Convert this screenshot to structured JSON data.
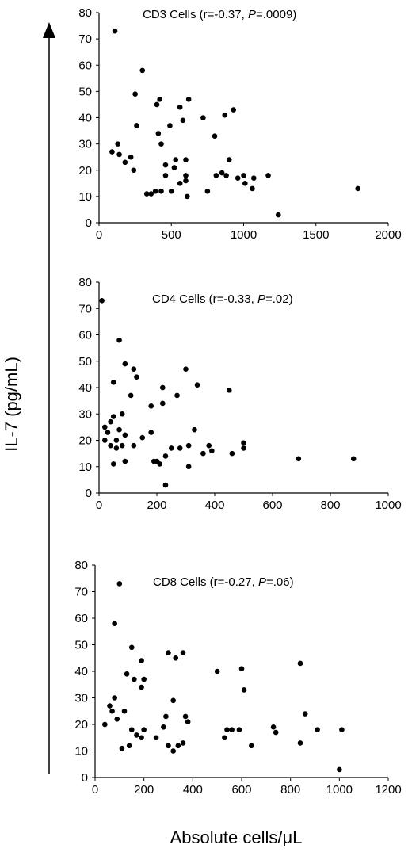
{
  "y_axis_label": "IL-7 (pg/mL)",
  "x_axis_label": "Absolute cells/μL",
  "chart_data": [
    {
      "type": "scatter",
      "title_prefix": "CD3 Cells (r=-0.37, ",
      "title_p": "P",
      "title_suffix": "=.0009)",
      "xlim": [
        0,
        2000
      ],
      "ylim": [
        0,
        80
      ],
      "x_ticks": [
        0,
        500,
        1000,
        1500,
        2000
      ],
      "y_ticks": [
        0,
        10,
        20,
        30,
        40,
        50,
        60,
        70,
        80
      ],
      "points": [
        [
          110,
          73
        ],
        [
          300,
          58
        ],
        [
          250,
          49
        ],
        [
          420,
          47
        ],
        [
          620,
          47
        ],
        [
          400,
          45
        ],
        [
          560,
          44
        ],
        [
          930,
          43
        ],
        [
          870,
          41
        ],
        [
          720,
          40
        ],
        [
          580,
          39
        ],
        [
          490,
          37
        ],
        [
          260,
          37
        ],
        [
          410,
          34
        ],
        [
          800,
          33
        ],
        [
          430,
          30
        ],
        [
          130,
          30
        ],
        [
          90,
          27
        ],
        [
          140,
          26
        ],
        [
          220,
          25
        ],
        [
          180,
          23
        ],
        [
          900,
          24
        ],
        [
          530,
          24
        ],
        [
          600,
          24
        ],
        [
          460,
          22
        ],
        [
          240,
          20
        ],
        [
          520,
          21
        ],
        [
          460,
          18
        ],
        [
          600,
          18
        ],
        [
          810,
          18
        ],
        [
          850,
          19
        ],
        [
          880,
          18
        ],
        [
          1000,
          18
        ],
        [
          1070,
          17
        ],
        [
          1170,
          18
        ],
        [
          960,
          17
        ],
        [
          600,
          16
        ],
        [
          560,
          15
        ],
        [
          1010,
          15
        ],
        [
          1060,
          13
        ],
        [
          500,
          12
        ],
        [
          430,
          12
        ],
        [
          390,
          12
        ],
        [
          750,
          12
        ],
        [
          610,
          10
        ],
        [
          360,
          11
        ],
        [
          330,
          11
        ],
        [
          1790,
          13
        ],
        [
          1240,
          3
        ]
      ]
    },
    {
      "type": "scatter",
      "title_prefix": "CD4 Cells (r=-0.33, ",
      "title_p": "P",
      "title_suffix": "=.02)",
      "xlim": [
        0,
        1000
      ],
      "ylim": [
        0,
        80
      ],
      "x_ticks": [
        0,
        200,
        400,
        600,
        800,
        1000
      ],
      "y_ticks": [
        0,
        10,
        20,
        30,
        40,
        50,
        60,
        70,
        80
      ],
      "points": [
        [
          10,
          73
        ],
        [
          70,
          58
        ],
        [
          90,
          49
        ],
        [
          120,
          47
        ],
        [
          300,
          47
        ],
        [
          130,
          44
        ],
        [
          50,
          42
        ],
        [
          340,
          41
        ],
        [
          220,
          40
        ],
        [
          450,
          39
        ],
        [
          270,
          37
        ],
        [
          110,
          37
        ],
        [
          220,
          34
        ],
        [
          180,
          33
        ],
        [
          80,
          30
        ],
        [
          50,
          29
        ],
        [
          40,
          27
        ],
        [
          20,
          25
        ],
        [
          70,
          24
        ],
        [
          30,
          23
        ],
        [
          90,
          22
        ],
        [
          180,
          23
        ],
        [
          150,
          21
        ],
        [
          330,
          24
        ],
        [
          60,
          20
        ],
        [
          20,
          20
        ],
        [
          120,
          18
        ],
        [
          80,
          18
        ],
        [
          40,
          18
        ],
        [
          60,
          17
        ],
        [
          250,
          17
        ],
        [
          280,
          17
        ],
        [
          380,
          18
        ],
        [
          390,
          16
        ],
        [
          310,
          18
        ],
        [
          500,
          19
        ],
        [
          500,
          17
        ],
        [
          360,
          15
        ],
        [
          460,
          15
        ],
        [
          230,
          14
        ],
        [
          200,
          12
        ],
        [
          190,
          12
        ],
        [
          90,
          12
        ],
        [
          50,
          11
        ],
        [
          210,
          11
        ],
        [
          310,
          10
        ],
        [
          690,
          13
        ],
        [
          880,
          13
        ],
        [
          230,
          3
        ]
      ]
    },
    {
      "type": "scatter",
      "title_prefix": "CD8 Cells (r=-0.27, ",
      "title_p": "P",
      "title_suffix": "=.06)",
      "xlim": [
        0,
        1200
      ],
      "ylim": [
        0,
        80
      ],
      "x_ticks": [
        0,
        200,
        400,
        600,
        800,
        1000,
        1200
      ],
      "y_ticks": [
        0,
        10,
        20,
        30,
        40,
        50,
        60,
        70,
        80
      ],
      "points": [
        [
          100,
          73
        ],
        [
          80,
          58
        ],
        [
          150,
          49
        ],
        [
          300,
          47
        ],
        [
          360,
          47
        ],
        [
          330,
          45
        ],
        [
          190,
          44
        ],
        [
          840,
          43
        ],
        [
          600,
          41
        ],
        [
          500,
          40
        ],
        [
          130,
          39
        ],
        [
          200,
          37
        ],
        [
          160,
          37
        ],
        [
          190,
          34
        ],
        [
          610,
          33
        ],
        [
          80,
          30
        ],
        [
          320,
          29
        ],
        [
          60,
          27
        ],
        [
          70,
          25
        ],
        [
          120,
          25
        ],
        [
          860,
          24
        ],
        [
          370,
          23
        ],
        [
          290,
          23
        ],
        [
          40,
          20
        ],
        [
          90,
          22
        ],
        [
          380,
          21
        ],
        [
          280,
          19
        ],
        [
          150,
          18
        ],
        [
          200,
          18
        ],
        [
          540,
          18
        ],
        [
          730,
          19
        ],
        [
          1010,
          18
        ],
        [
          560,
          18
        ],
        [
          590,
          18
        ],
        [
          740,
          17
        ],
        [
          910,
          18
        ],
        [
          170,
          16
        ],
        [
          190,
          15
        ],
        [
          250,
          15
        ],
        [
          530,
          15
        ],
        [
          640,
          12
        ],
        [
          340,
          12
        ],
        [
          300,
          12
        ],
        [
          360,
          13
        ],
        [
          840,
          13
        ],
        [
          110,
          11
        ],
        [
          140,
          12
        ],
        [
          320,
          10
        ],
        [
          1000,
          3
        ]
      ]
    }
  ]
}
